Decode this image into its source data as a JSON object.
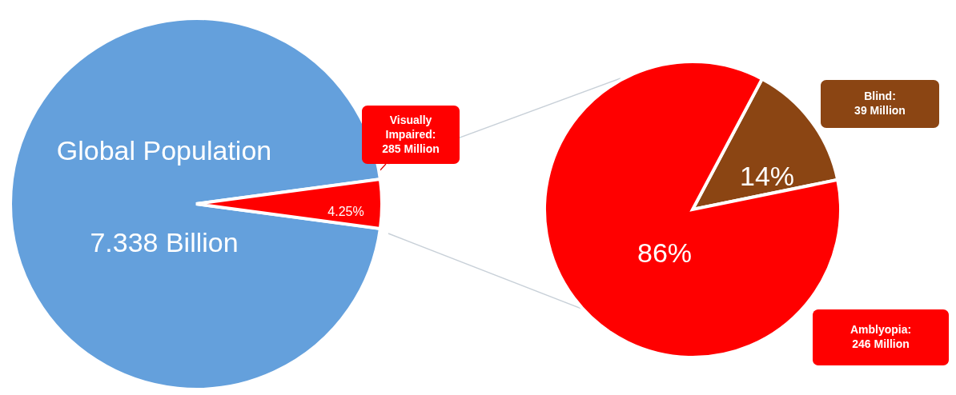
{
  "chart_data": [
    {
      "type": "pie",
      "categories": [
        "Global Population\n7.338 Billion",
        "Visually\nImpaired:\n285 Million"
      ],
      "values": [
        95.75,
        4.25
      ],
      "colors": [
        "#64a0dc",
        "#ff0000"
      ],
      "value_labels": [
        null,
        "4.25%"
      ]
    },
    {
      "type": "pie",
      "categories": [
        "Blind:\n39 Million",
        "Amblyopia:\n246 Million"
      ],
      "values": [
        14,
        86
      ],
      "colors": [
        "#8b4513",
        "#ff0000"
      ],
      "value_labels": [
        "14%",
        "86%"
      ]
    }
  ]
}
